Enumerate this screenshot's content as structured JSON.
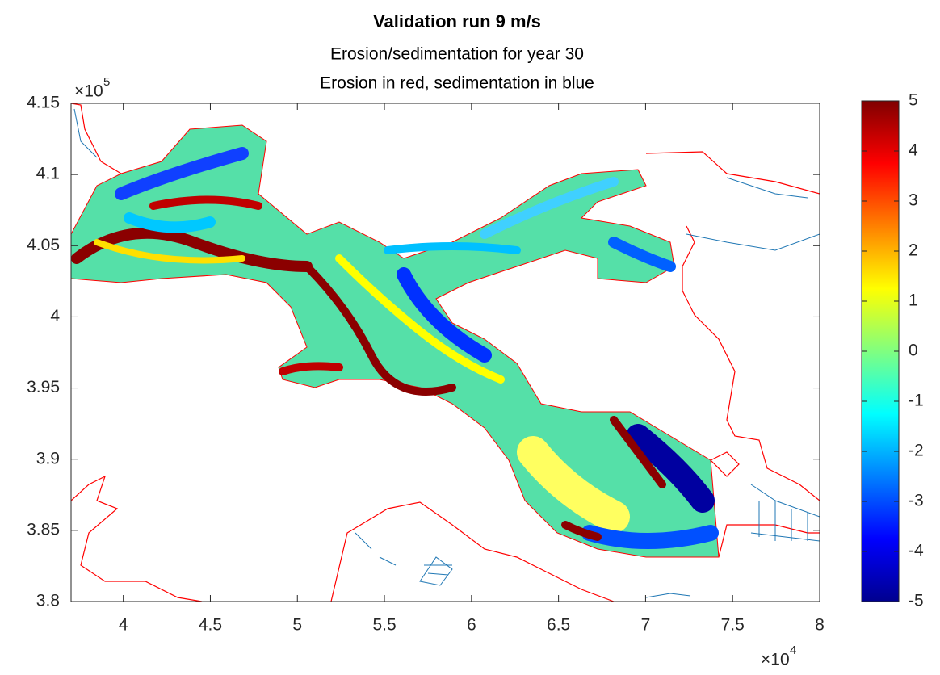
{
  "chart_data": {
    "type": "map",
    "title": "Validation run 9 m/s",
    "subtitle": [
      "Erosion/sedimentation for year 30",
      "Erosion in red, sedimentation in blue"
    ],
    "xlim": [
      3.7,
      8
    ],
    "xticks": [
      4,
      4.5,
      5,
      5.5,
      6,
      6.5,
      7,
      7.5,
      8
    ],
    "x_multiplier": "×10",
    "x_power": "4",
    "ylim": [
      3.8,
      4.15
    ],
    "yticks": [
      3.8,
      3.85,
      3.9,
      3.95,
      4,
      4.05,
      4.1,
      4.15
    ],
    "y_multiplier": "×10",
    "y_power": "5",
    "clim": [
      -5,
      5
    ],
    "cticks": [
      -5,
      -4,
      -3,
      -2,
      -1,
      0,
      1,
      2,
      3,
      4,
      5
    ],
    "colormap": [
      "#00008f",
      "#0000ff",
      "#0080ff",
      "#00ffff",
      "#80ff80",
      "#ffff00",
      "#ff8000",
      "#ff0000",
      "#800000"
    ],
    "outline_color": "#ff0000",
    "grid_color": "#1f77b4"
  }
}
